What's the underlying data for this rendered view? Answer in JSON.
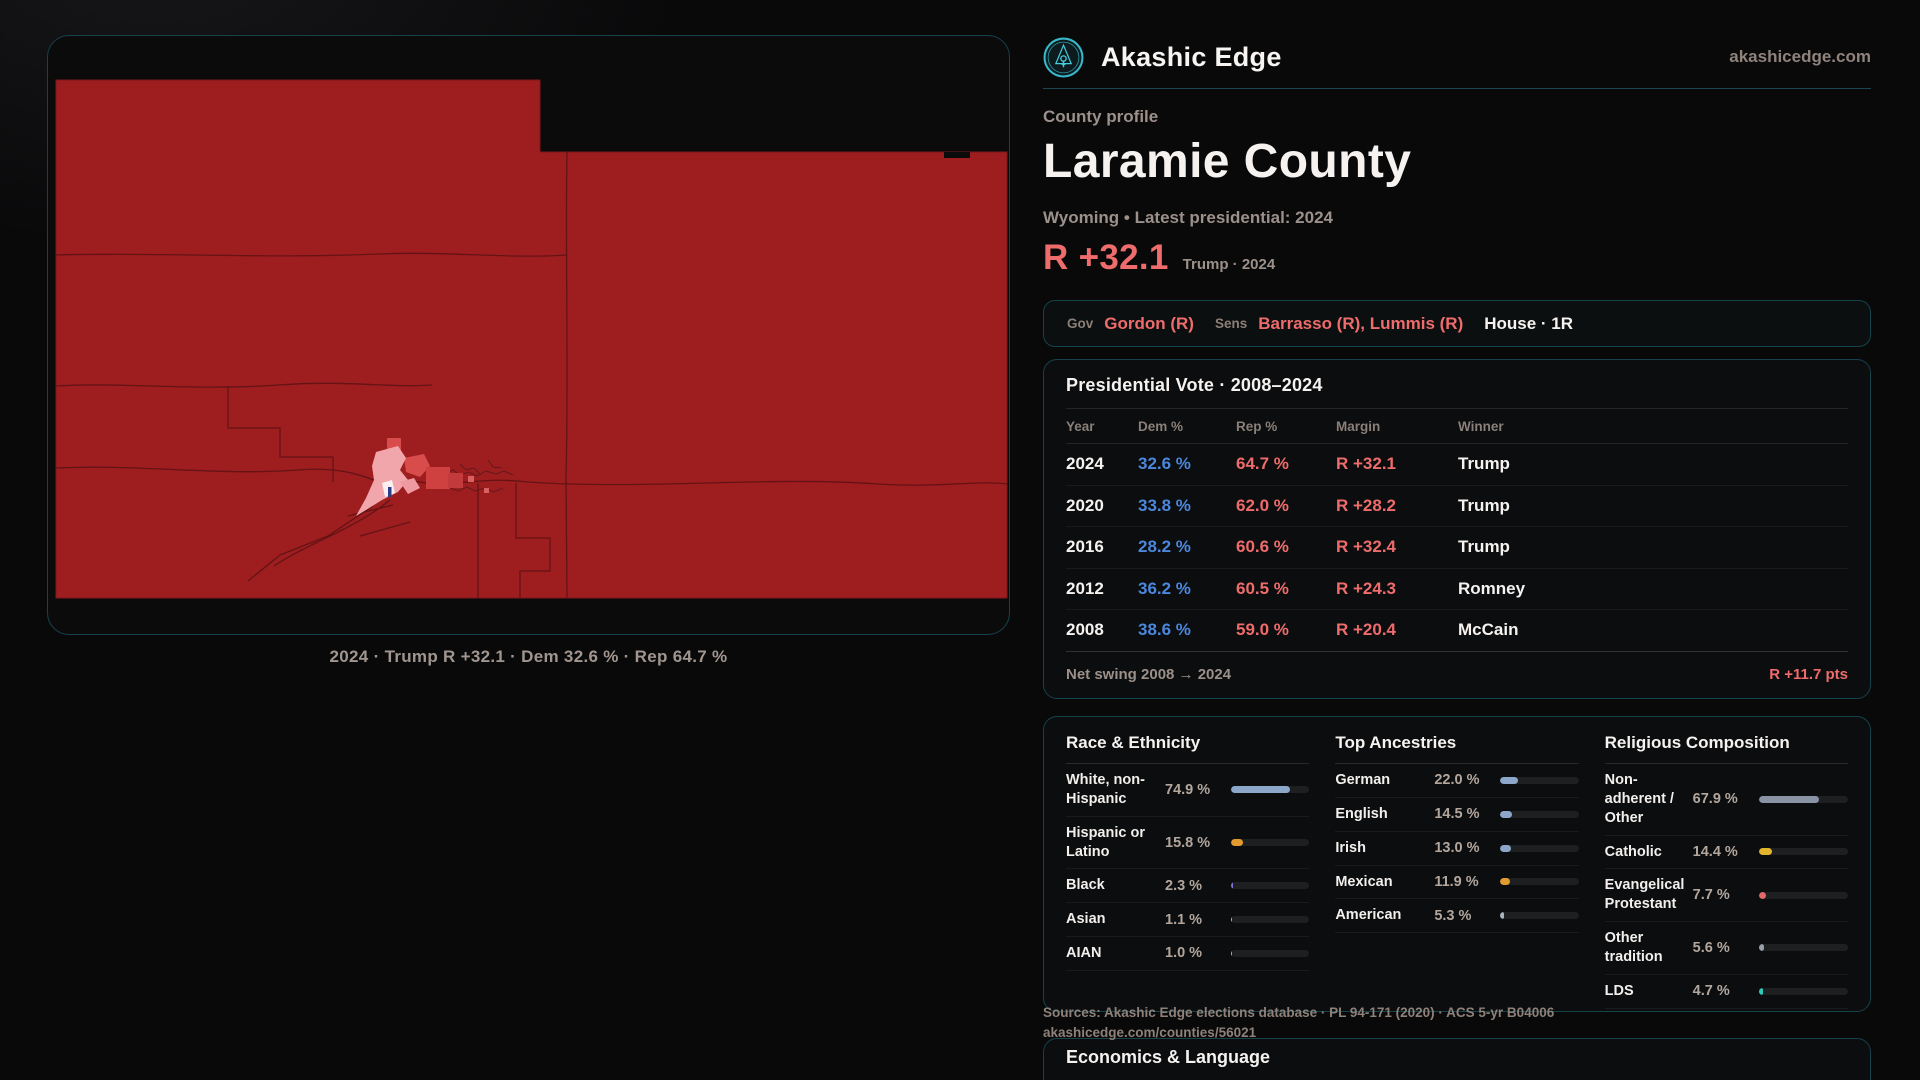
{
  "brand": {
    "name": "Akashic Edge",
    "domain": "akashicedge.com",
    "logo_color": "#45ccdd"
  },
  "profile": {
    "eyebrow": "County profile",
    "title": "Laramie County",
    "subtitle": "Wyoming • Latest presidential: 2024",
    "margin_value": "R +32.1",
    "margin_note": "Trump · 2024"
  },
  "officials": {
    "gov_label": "Gov",
    "gov": "Gordon (R)",
    "sens_label": "Sens",
    "sens": "Barrasso (R), Lummis (R)",
    "house": "House · 1R"
  },
  "map": {
    "caption": "2024 · Trump R +32.1 · Dem 32.6 % · Rep 64.7 %",
    "base_fill": "#9e1d1f"
  },
  "election_table": {
    "title": "Presidential Vote · 2008–2024",
    "columns": [
      "Year",
      "Dem %",
      "Rep %",
      "Margin",
      "Winner"
    ],
    "rows": [
      {
        "year": "2024",
        "dem": "32.6 %",
        "rep": "64.7 %",
        "margin": "R +32.1",
        "winner": "Trump"
      },
      {
        "year": "2020",
        "dem": "33.8 %",
        "rep": "62.0 %",
        "margin": "R +28.2",
        "winner": "Trump"
      },
      {
        "year": "2016",
        "dem": "28.2 %",
        "rep": "60.6 %",
        "margin": "R +32.4",
        "winner": "Trump"
      },
      {
        "year": "2012",
        "dem": "36.2 %",
        "rep": "60.5 %",
        "margin": "R +24.3",
        "winner": "Romney"
      },
      {
        "year": "2008",
        "dem": "38.6 %",
        "rep": "59.0 %",
        "margin": "R +20.4",
        "winner": "McCain"
      }
    ],
    "net_swing_label": "Net swing 2008 → 2024",
    "net_swing_value": "R +11.7 pts"
  },
  "demographics": {
    "race": {
      "title": "Race & Ethnicity",
      "rows": [
        {
          "label": "White, non-Hispanic",
          "value": "74.9 %",
          "pct": 74.9,
          "color": "#8ca7c9"
        },
        {
          "label": "Hispanic or Latino",
          "value": "15.8 %",
          "pct": 15.8,
          "color": "#e29b2f"
        },
        {
          "label": "Black",
          "value": "2.3 %",
          "pct": 2.3,
          "color": "#7b72d8"
        },
        {
          "label": "Asian",
          "value": "1.1 %",
          "pct": 1.1,
          "color": "#aab4c0"
        },
        {
          "label": "AIAN",
          "value": "1.0 %",
          "pct": 1.0,
          "color": "#aab4c0"
        }
      ]
    },
    "ancestries": {
      "title": "Top Ancestries",
      "rows": [
        {
          "label": "German",
          "value": "22.0 %",
          "pct": 22.0,
          "color": "#8ca7c9"
        },
        {
          "label": "English",
          "value": "14.5 %",
          "pct": 14.5,
          "color": "#8ca7c9"
        },
        {
          "label": "Irish",
          "value": "13.0 %",
          "pct": 13.0,
          "color": "#8ca7c9"
        },
        {
          "label": "Mexican",
          "value": "11.9 %",
          "pct": 11.9,
          "color": "#e29b2f"
        },
        {
          "label": "American",
          "value": "5.3 %",
          "pct": 5.3,
          "color": "#aab4c0"
        }
      ]
    },
    "religion": {
      "title": "Religious Composition",
      "rows": [
        {
          "label": "Non-adherent / Other",
          "value": "67.9 %",
          "pct": 67.9,
          "color": "#8a93a3"
        },
        {
          "label": "Catholic",
          "value": "14.4 %",
          "pct": 14.4,
          "color": "#e3b52f"
        },
        {
          "label": "Evangelical Protestant",
          "value": "7.7 %",
          "pct": 7.7,
          "color": "#e06a6a"
        },
        {
          "label": "Other tradition",
          "value": "5.6 %",
          "pct": 5.6,
          "color": "#9aa0a8"
        },
        {
          "label": "LDS",
          "value": "4.7 %",
          "pct": 4.7,
          "color": "#2fc9b9"
        }
      ]
    }
  },
  "footer": {
    "sources": "Sources: Akashic Edge elections database · PL 94-171 (2020) · ACS 5-yr B04006",
    "permalink": "akashicedge.com/counties/56021"
  },
  "economics": {
    "title": "Economics & Language"
  },
  "colors": {
    "accent_red": "#ee6c6b",
    "dem_blue": "#4c87dc",
    "teal_border": "#16424c"
  }
}
